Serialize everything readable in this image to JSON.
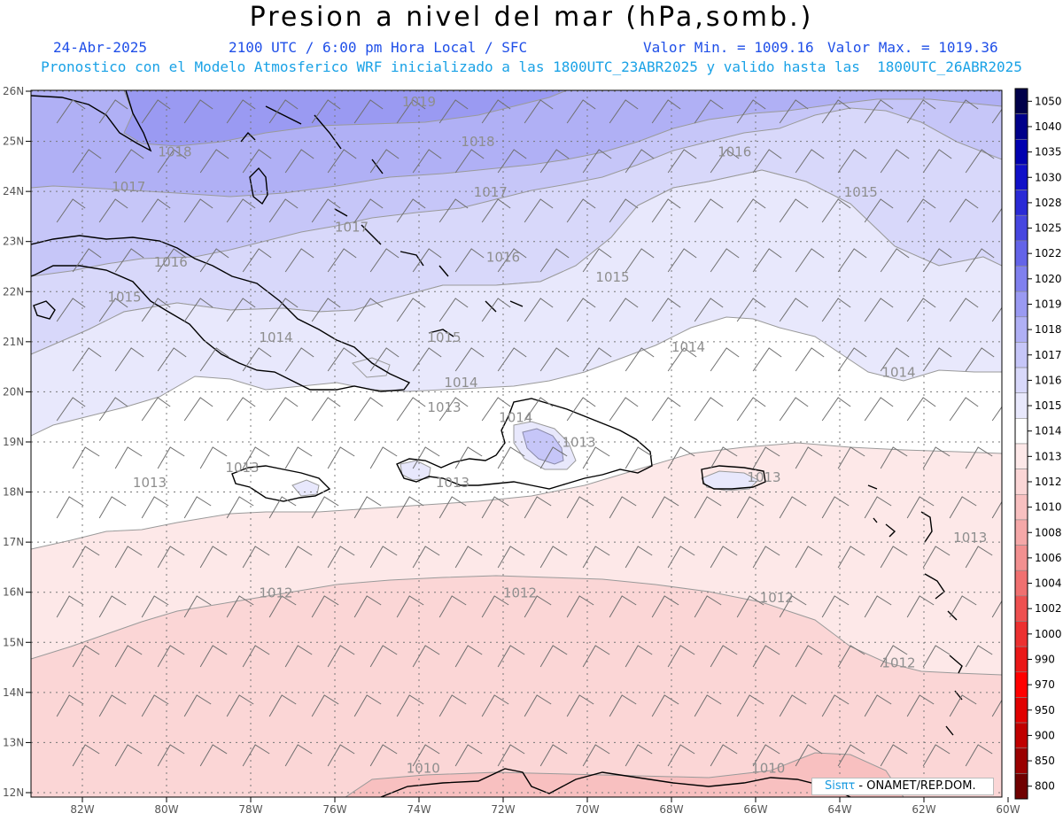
{
  "title": "Presion a nivel del mar (hPa,somb.)",
  "header": {
    "date": "24-Abr-2025",
    "time": "2100 UTC / 6:00 pm Hora Local / SFC",
    "min": "Valor Min. = 1009.16",
    "max": "Valor Max. = 1019.36",
    "subtitle": "Pronostico con el Modelo Atmosferico WRF inicializado a las 1800UTC_23ABR2025 y valido hasta las  1800UTC_26ABR2025"
  },
  "lat_labels": [
    "26N",
    "25N",
    "24N",
    "23N",
    "22N",
    "21N",
    "20N",
    "19N",
    "18N",
    "17N",
    "16N",
    "15N",
    "14N",
    "13N",
    "12N"
  ],
  "lon_labels": [
    "82W",
    "80W",
    "78W",
    "76W",
    "74W",
    "72W",
    "70W",
    "68W",
    "66W",
    "64W",
    "62W",
    "60W"
  ],
  "colorbar": [
    {
      "label": "1050",
      "color": "#00004a"
    },
    {
      "label": "1040",
      "color": "#00008a"
    },
    {
      "label": "1035",
      "color": "#0000b0"
    },
    {
      "label": "1030",
      "color": "#1010c8"
    },
    {
      "label": "1028",
      "color": "#2a2ad6"
    },
    {
      "label": "1025",
      "color": "#4646e0"
    },
    {
      "label": "1022",
      "color": "#6464e8"
    },
    {
      "label": "1020",
      "color": "#8080ee"
    },
    {
      "label": "1019",
      "color": "#9a9af2"
    },
    {
      "label": "1018",
      "color": "#b0b0f5"
    },
    {
      "label": "1017",
      "color": "#c6c6f8"
    },
    {
      "label": "1016",
      "color": "#d8d8fa"
    },
    {
      "label": "1015",
      "color": "#e8e8fc"
    },
    {
      "label": "1014",
      "color": "#ffffff"
    },
    {
      "label": "1013",
      "color": "#fde8e8"
    },
    {
      "label": "1012",
      "color": "#fbd6d6"
    },
    {
      "label": "1010",
      "color": "#f8c0c0"
    },
    {
      "label": "1008",
      "color": "#f5a8a8"
    },
    {
      "label": "1006",
      "color": "#f29090"
    },
    {
      "label": "1004",
      "color": "#f07070"
    },
    {
      "label": "1002",
      "color": "#ee5050"
    },
    {
      "label": "1000",
      "color": "#ec3030"
    },
    {
      "label": "990",
      "color": "#ea1818"
    },
    {
      "label": "970",
      "color": "#ff0000"
    },
    {
      "label": "950",
      "color": "#e00000"
    },
    {
      "label": "900",
      "color": "#c00000"
    },
    {
      "label": "850",
      "color": "#9a0000"
    },
    {
      "label": "800",
      "color": "#700000"
    }
  ],
  "contour_labels": [
    {
      "text": "1019",
      "lon": -74.0,
      "lat": 25.7
    },
    {
      "text": "1018",
      "lon": -72.6,
      "lat": 24.9
    },
    {
      "text": "1018",
      "lon": -79.8,
      "lat": 24.7
    },
    {
      "text": "1017",
      "lon": -80.9,
      "lat": 24.0
    },
    {
      "text": "1017",
      "lon": -72.3,
      "lat": 23.9
    },
    {
      "text": "1017",
      "lon": -75.6,
      "lat": 23.2
    },
    {
      "text": "1016",
      "lon": -66.5,
      "lat": 24.7
    },
    {
      "text": "1016",
      "lon": -72.0,
      "lat": 22.6
    },
    {
      "text": "1016",
      "lon": -79.9,
      "lat": 22.5
    },
    {
      "text": "1015",
      "lon": -63.5,
      "lat": 23.9
    },
    {
      "text": "1015",
      "lon": -69.4,
      "lat": 22.2
    },
    {
      "text": "1015",
      "lon": -81.0,
      "lat": 21.8
    },
    {
      "text": "1015",
      "lon": -73.4,
      "lat": 21.0
    },
    {
      "text": "1014",
      "lon": -77.4,
      "lat": 21.0
    },
    {
      "text": "1014",
      "lon": -67.6,
      "lat": 20.8
    },
    {
      "text": "1014",
      "lon": -62.6,
      "lat": 20.3
    },
    {
      "text": "1014",
      "lon": -73.0,
      "lat": 20.1
    },
    {
      "text": "1014",
      "lon": -71.7,
      "lat": 19.4
    },
    {
      "text": "1013",
      "lon": -73.4,
      "lat": 19.6
    },
    {
      "text": "1013",
      "lon": -70.2,
      "lat": 18.9
    },
    {
      "text": "1013",
      "lon": -78.2,
      "lat": 18.4
    },
    {
      "text": "1013",
      "lon": -80.4,
      "lat": 18.1
    },
    {
      "text": "1013",
      "lon": -73.2,
      "lat": 18.1
    },
    {
      "text": "1013",
      "lon": -65.8,
      "lat": 18.2
    },
    {
      "text": "1013",
      "lon": -60.9,
      "lat": 17.0
    },
    {
      "text": "1012",
      "lon": -77.4,
      "lat": 15.9
    },
    {
      "text": "1012",
      "lon": -71.6,
      "lat": 15.9
    },
    {
      "text": "1012",
      "lon": -65.5,
      "lat": 15.8
    },
    {
      "text": "1012",
      "lon": -62.6,
      "lat": 14.5
    },
    {
      "text": "1010",
      "lon": -73.9,
      "lat": 12.4
    },
    {
      "text": "1010",
      "lon": -65.7,
      "lat": 12.4
    }
  ],
  "credit": {
    "brand": "Sisπτ",
    "rest": " - ONAMET/REP.DOM."
  }
}
